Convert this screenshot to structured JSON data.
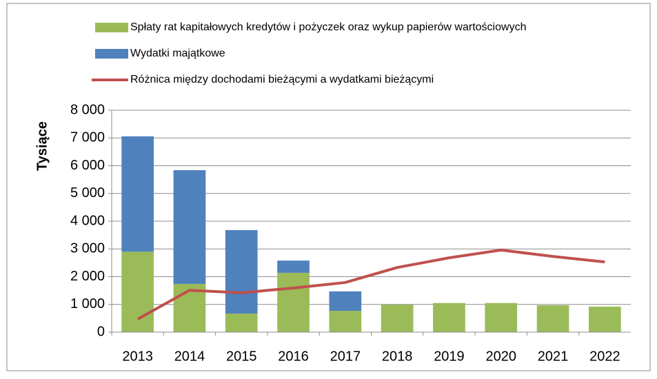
{
  "chart_data": {
    "type": "stacked-bar-line",
    "y_label": "Tysiące",
    "categories": [
      "2013",
      "2014",
      "2015",
      "2016",
      "2017",
      "2018",
      "2019",
      "2020",
      "2021",
      "2022"
    ],
    "series": [
      {
        "name": "Spłaty rat kapitałowych kredytów i pożyczek oraz wykup papierów wartościowych",
        "color": "#9bbb59",
        "kind": "bar",
        "values": [
          2900,
          1740,
          670,
          2140,
          770,
          990,
          1050,
          1050,
          970,
          920
        ]
      },
      {
        "name": "Wydatki majątkowe",
        "color": "#4f81bd",
        "kind": "bar",
        "values": [
          4160,
          4100,
          3010,
          440,
          700,
          0,
          0,
          0,
          0,
          0
        ]
      },
      {
        "name": "Różnica między dochodami bieżącymi a wydatkami bieżącymi",
        "color": "#c0504d",
        "kind": "line",
        "values": [
          470,
          1510,
          1420,
          1590,
          1790,
          2330,
          2680,
          2960,
          2730,
          2530
        ]
      }
    ],
    "ylim": [
      0,
      8000
    ],
    "yticks": [
      0,
      {
        "value": 1000,
        "label": "1 000"
      },
      {
        "value": 2000,
        "label": "2 000"
      },
      {
        "value": 3000,
        "label": "3 000"
      },
      {
        "value": 4000,
        "label": "4 000"
      },
      {
        "value": 5000,
        "label": "5 000"
      },
      {
        "value": 6000,
        "label": "6 000"
      },
      {
        "value": 7000,
        "label": "7 000"
      },
      {
        "value": 8000,
        "label": "8 000"
      }
    ],
    "grid": true
  }
}
